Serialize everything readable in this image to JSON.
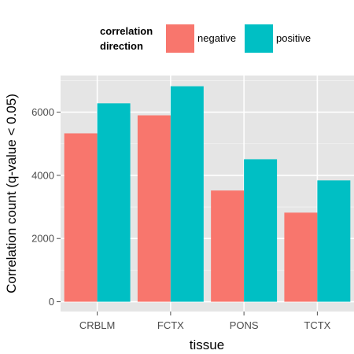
{
  "chart_data": {
    "type": "bar",
    "title": "",
    "xlabel": "tissue",
    "ylabel": "Correlation count (q-value < 0.05)",
    "categories": [
      "CRBLM",
      "FCTX",
      "PONS",
      "TCTX"
    ],
    "series": [
      {
        "name": "negative",
        "color": "#F8766D",
        "values": [
          5330,
          5900,
          3520,
          2820
        ]
      },
      {
        "name": "positive",
        "color": "#00BFC4",
        "values": [
          6280,
          6820,
          4510,
          3840
        ]
      }
    ],
    "ylim": [
      -310,
      7160
    ],
    "yticks": [
      0,
      2000,
      4000,
      6000
    ],
    "grid": true,
    "legend": {
      "title_lines": [
        "correlation",
        "direction"
      ],
      "position": "top"
    },
    "colors": {
      "panel_background": "#E5E5E5",
      "grid_major": "#FFFFFF",
      "grid_minor": "#F2F2F2"
    }
  }
}
